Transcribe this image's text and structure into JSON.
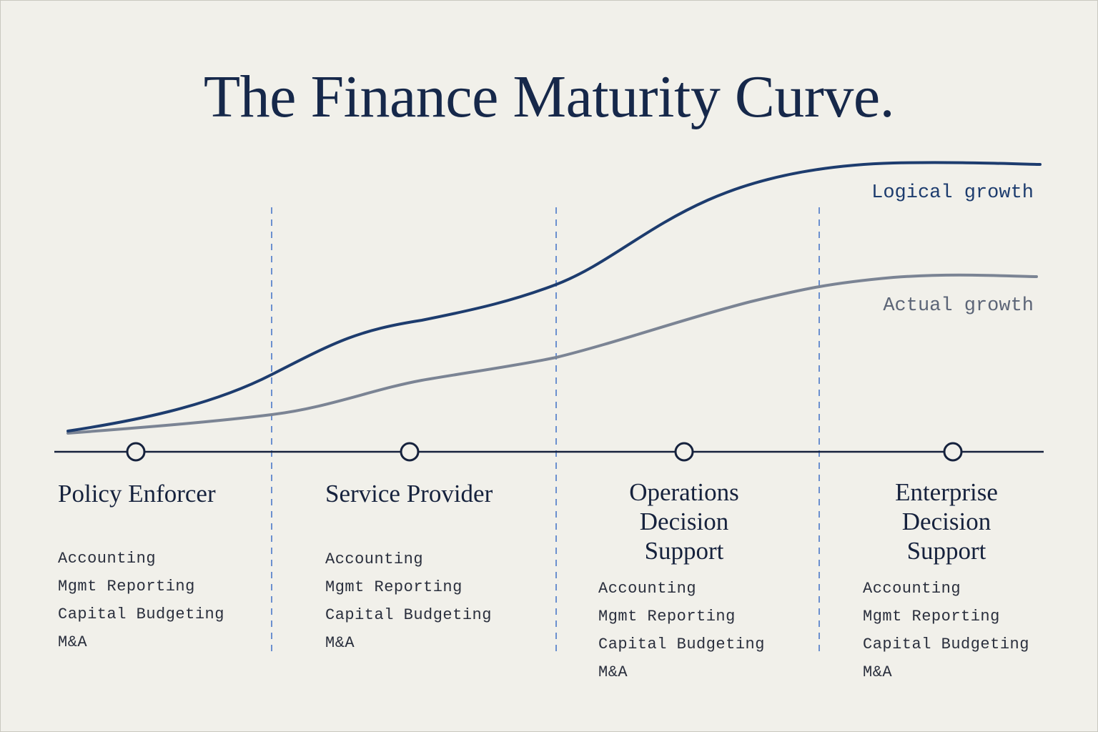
{
  "title": "The Finance Maturity Curve.",
  "colors": {
    "background": "#f1f0ea",
    "logical_curve": "#1d3c6e",
    "actual_curve": "#7b8494",
    "axis": "#16223d",
    "divider": "#4a78c8"
  },
  "curves": {
    "logical": {
      "label": "Logical growth"
    },
    "actual": {
      "label": "Actual growth"
    }
  },
  "stages": [
    {
      "name": "Policy Enforcer",
      "capabilities": [
        "Accounting",
        "Mgmt Reporting",
        "Capital Budgeting",
        "M&A"
      ]
    },
    {
      "name": "Service Provider",
      "capabilities": [
        "Accounting",
        "Mgmt Reporting",
        "Capital Budgeting",
        "M&A"
      ]
    },
    {
      "name": "Operations Decision Support",
      "capabilities": [
        "Accounting",
        "Mgmt Reporting",
        "Capital Budgeting",
        "M&A"
      ]
    },
    {
      "name": "Enterprise Decision Support",
      "capabilities": [
        "Accounting",
        "Mgmt Reporting",
        "Capital Budgeting",
        "M&A"
      ]
    }
  ]
}
